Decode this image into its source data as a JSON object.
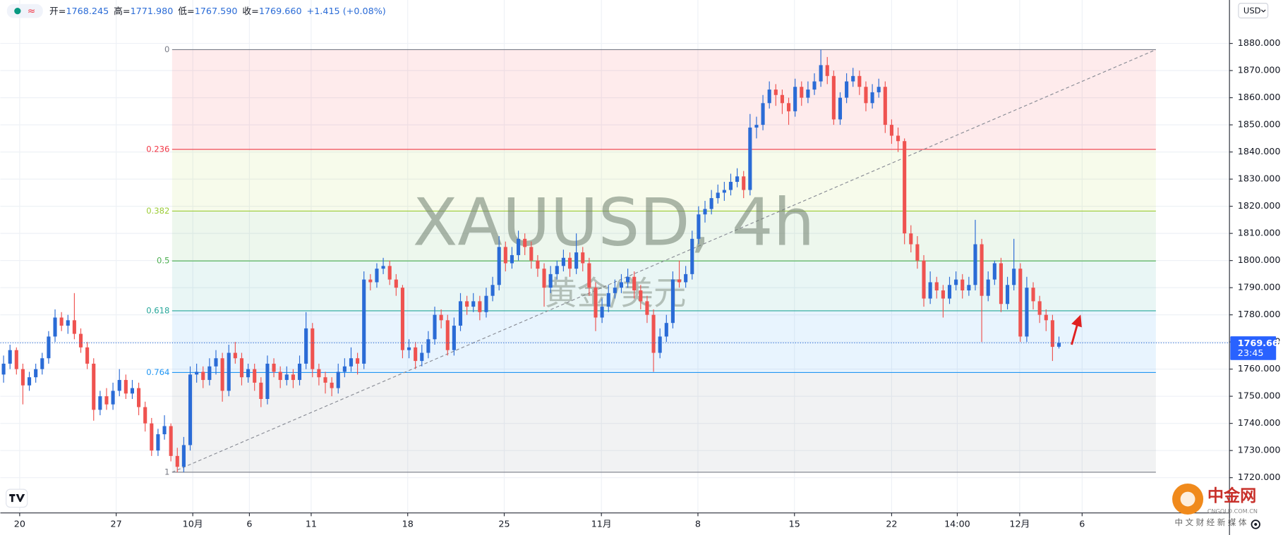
{
  "header": {
    "icon": "≈",
    "items": [
      {
        "label": "开=",
        "value": "1768.245"
      },
      {
        "label": "高=",
        "value": "1771.980"
      },
      {
        "label": "低=",
        "value": "1767.590"
      },
      {
        "label": "收=",
        "value": "1769.660"
      }
    ],
    "change": "+1.415 (+0.08%)"
  },
  "logo": {
    "name": "中金网",
    "domain": "CNGOLD.COM.CN",
    "slogan": "中文财经新媒体"
  },
  "chart_data": {
    "type": "candlestick",
    "currency": "USD",
    "watermark": {
      "title": "XAUUSD, 4h",
      "subtitle": "黄金/美元"
    },
    "up_color": "#2a6bd6",
    "down_color": "#ef5350",
    "grid": true,
    "ylim": [
      1707,
      1896
    ],
    "yticks": [
      {
        "value": 1720,
        "label": "1720.000"
      },
      {
        "value": 1730,
        "label": "1730.000"
      },
      {
        "value": 1740,
        "label": "1740.000"
      },
      {
        "value": 1750,
        "label": "1750.000"
      },
      {
        "value": 1760,
        "label": "1760.000"
      },
      {
        "value": 1770,
        "label": "1770.000"
      },
      {
        "value": 1780,
        "label": "1780.000"
      },
      {
        "value": 1790,
        "label": "1790.000"
      },
      {
        "value": 1800,
        "label": "1800.000"
      },
      {
        "value": 1810,
        "label": "1810.000"
      },
      {
        "value": 1820,
        "label": "1820.000"
      },
      {
        "value": 1830,
        "label": "1830.000"
      },
      {
        "value": 1840,
        "label": "1840.000"
      },
      {
        "value": 1850,
        "label": "1850.000"
      },
      {
        "value": 1860,
        "label": "1860.000"
      },
      {
        "value": 1870,
        "label": "1870.000"
      },
      {
        "value": 1880,
        "label": "1880.000"
      }
    ],
    "xlim": [
      -0.5,
      190.5
    ],
    "xticks": [
      {
        "value": 2.5,
        "label": "20"
      },
      {
        "value": 17.5,
        "label": "27"
      },
      {
        "value": 29.4,
        "label": "10月"
      },
      {
        "value": 38.2,
        "label": "6"
      },
      {
        "value": 47.8,
        "label": "11"
      },
      {
        "value": 62.8,
        "label": "18"
      },
      {
        "value": 77.8,
        "label": "25"
      },
      {
        "value": 92.9,
        "label": "11月"
      },
      {
        "value": 107.9,
        "label": "8"
      },
      {
        "value": 122.9,
        "label": "15"
      },
      {
        "value": 138,
        "label": "22"
      },
      {
        "value": 148.2,
        "label": "14:00"
      },
      {
        "value": 157.9,
        "label": "12月"
      },
      {
        "value": 167.6,
        "label": "6"
      }
    ],
    "last_price": {
      "value": 1769.66,
      "label": "1769.660",
      "countdown": "23:45"
    },
    "fib": {
      "high": 1877.7,
      "low": 1722,
      "levels": [
        0,
        0.236,
        0.382,
        0.5,
        0.618,
        0.764,
        1
      ],
      "colors": [
        "#787b86",
        "#f23645",
        "#9ccc36",
        "#4caf50",
        "#26a69a",
        "#2196f3",
        "#787b86"
      ],
      "fills": [
        "rgba(242,54,69,0.1)",
        "rgba(180,215,60,0.1)",
        "rgba(76,175,80,0.1)",
        "rgba(38,166,154,0.1)",
        "rgba(33,150,243,0.1)",
        "rgba(120,123,134,0.1)"
      ]
    },
    "ohlc": [
      [
        1758,
        1765,
        1755,
        1762
      ],
      [
        1762,
        1769,
        1760,
        1767
      ],
      [
        1767,
        1768,
        1758,
        1760
      ],
      [
        1760,
        1762,
        1747,
        1754
      ],
      [
        1754,
        1759,
        1752,
        1757
      ],
      [
        1757,
        1762,
        1755,
        1760
      ],
      [
        1760,
        1766,
        1758,
        1764
      ],
      [
        1764,
        1774,
        1762,
        1772
      ],
      [
        1772,
        1782,
        1770,
        1779
      ],
      [
        1779,
        1781,
        1774,
        1776
      ],
      [
        1776,
        1780,
        1773,
        1778
      ],
      [
        1778,
        1788,
        1771,
        1773
      ],
      [
        1773,
        1775,
        1766,
        1768
      ],
      [
        1768,
        1770,
        1760,
        1762
      ],
      [
        1762,
        1764,
        1741,
        1745
      ],
      [
        1745,
        1752,
        1743,
        1750
      ],
      [
        1750,
        1753,
        1745,
        1747
      ],
      [
        1747,
        1755,
        1745,
        1752
      ],
      [
        1752,
        1760,
        1750,
        1756
      ],
      [
        1756,
        1758,
        1749,
        1751
      ],
      [
        1751,
        1756,
        1749,
        1753
      ],
      [
        1753,
        1755,
        1743,
        1746
      ],
      [
        1746,
        1748,
        1737,
        1740
      ],
      [
        1740,
        1742,
        1728,
        1730
      ],
      [
        1730,
        1738,
        1728,
        1736
      ],
      [
        1736,
        1743,
        1734,
        1739
      ],
      [
        1739,
        1740,
        1726,
        1728
      ],
      [
        1728,
        1731,
        1722,
        1724
      ],
      [
        1724,
        1735,
        1722,
        1732
      ],
      [
        1732,
        1761,
        1730,
        1758
      ],
      [
        1758,
        1762,
        1755,
        1759
      ],
      [
        1759,
        1761,
        1753,
        1756
      ],
      [
        1756,
        1764,
        1754,
        1761
      ],
      [
        1761,
        1767,
        1758,
        1764
      ],
      [
        1764,
        1766,
        1748,
        1752
      ],
      [
        1752,
        1769,
        1750,
        1766
      ],
      [
        1766,
        1770,
        1762,
        1764
      ],
      [
        1764,
        1766,
        1754,
        1757
      ],
      [
        1757,
        1762,
        1755,
        1760
      ],
      [
        1760,
        1762,
        1752,
        1755
      ],
      [
        1755,
        1757,
        1746,
        1749
      ],
      [
        1749,
        1765,
        1747,
        1762
      ],
      [
        1762,
        1764,
        1757,
        1759
      ],
      [
        1759,
        1761,
        1753,
        1756
      ],
      [
        1756,
        1761,
        1754,
        1758
      ],
      [
        1758,
        1760,
        1753,
        1756
      ],
      [
        1756,
        1765,
        1754,
        1762
      ],
      [
        1762,
        1781,
        1760,
        1775
      ],
      [
        1775,
        1777,
        1757,
        1760
      ],
      [
        1760,
        1762,
        1754,
        1757
      ],
      [
        1757,
        1759,
        1751,
        1755
      ],
      [
        1755,
        1757,
        1750,
        1753
      ],
      [
        1753,
        1762,
        1751,
        1759
      ],
      [
        1759,
        1764,
        1757,
        1761
      ],
      [
        1761,
        1768,
        1759,
        1764
      ],
      [
        1764,
        1766,
        1758,
        1762
      ],
      [
        1762,
        1796,
        1760,
        1793
      ],
      [
        1793,
        1795,
        1789,
        1792
      ],
      [
        1792,
        1799,
        1790,
        1797
      ],
      [
        1797,
        1801,
        1795,
        1798
      ],
      [
        1798,
        1800,
        1791,
        1793
      ],
      [
        1793,
        1795,
        1787,
        1790
      ],
      [
        1790,
        1791,
        1764,
        1767
      ],
      [
        1767,
        1771,
        1764,
        1768
      ],
      [
        1768,
        1770,
        1760,
        1763
      ],
      [
        1763,
        1769,
        1761,
        1766
      ],
      [
        1766,
        1774,
        1764,
        1771
      ],
      [
        1771,
        1783,
        1769,
        1780
      ],
      [
        1780,
        1782,
        1775,
        1778
      ],
      [
        1778,
        1780,
        1765,
        1767
      ],
      [
        1767,
        1779,
        1765,
        1776
      ],
      [
        1776,
        1788,
        1774,
        1785
      ],
      [
        1785,
        1787,
        1780,
        1783
      ],
      [
        1783,
        1788,
        1781,
        1785
      ],
      [
        1785,
        1787,
        1778,
        1781
      ],
      [
        1781,
        1790,
        1779,
        1787
      ],
      [
        1787,
        1794,
        1785,
        1791
      ],
      [
        1791,
        1809,
        1789,
        1805
      ],
      [
        1805,
        1807,
        1796,
        1799
      ],
      [
        1799,
        1805,
        1797,
        1802
      ],
      [
        1802,
        1811,
        1800,
        1808
      ],
      [
        1808,
        1810,
        1802,
        1805
      ],
      [
        1805,
        1807,
        1797,
        1800
      ],
      [
        1800,
        1802,
        1794,
        1797
      ],
      [
        1797,
        1799,
        1783,
        1790
      ],
      [
        1790,
        1798,
        1788,
        1795
      ],
      [
        1795,
        1800,
        1793,
        1798
      ],
      [
        1798,
        1804,
        1796,
        1801
      ],
      [
        1801,
        1803,
        1794,
        1797
      ],
      [
        1797,
        1810,
        1795,
        1803
      ],
      [
        1803,
        1805,
        1796,
        1799
      ],
      [
        1799,
        1801,
        1787,
        1790
      ],
      [
        1790,
        1792,
        1774,
        1779
      ],
      [
        1779,
        1786,
        1777,
        1783
      ],
      [
        1783,
        1791,
        1781,
        1788
      ],
      [
        1788,
        1793,
        1786,
        1790
      ],
      [
        1790,
        1795,
        1788,
        1792
      ],
      [
        1792,
        1797,
        1790,
        1794
      ],
      [
        1794,
        1796,
        1786,
        1789
      ],
      [
        1789,
        1791,
        1782,
        1785
      ],
      [
        1785,
        1787,
        1777,
        1780
      ],
      [
        1780,
        1782,
        1759,
        1766
      ],
      [
        1766,
        1775,
        1764,
        1772
      ],
      [
        1772,
        1780,
        1770,
        1777
      ],
      [
        1777,
        1796,
        1775,
        1793
      ],
      [
        1793,
        1800,
        1790,
        1792
      ],
      [
        1792,
        1798,
        1790,
        1795
      ],
      [
        1795,
        1811,
        1793,
        1808
      ],
      [
        1808,
        1820,
        1806,
        1817
      ],
      [
        1817,
        1822,
        1814,
        1819
      ],
      [
        1819,
        1826,
        1817,
        1823
      ],
      [
        1823,
        1828,
        1821,
        1825
      ],
      [
        1825,
        1829,
        1822,
        1826
      ],
      [
        1826,
        1832,
        1824,
        1829
      ],
      [
        1829,
        1834,
        1827,
        1831
      ],
      [
        1831,
        1833,
        1823,
        1826
      ],
      [
        1826,
        1854,
        1824,
        1849
      ],
      [
        1849,
        1853,
        1845,
        1850
      ],
      [
        1850,
        1861,
        1848,
        1858
      ],
      [
        1858,
        1866,
        1856,
        1863
      ],
      [
        1863,
        1865,
        1857,
        1861
      ],
      [
        1861,
        1863,
        1854,
        1858
      ],
      [
        1858,
        1860,
        1850,
        1855
      ],
      [
        1855,
        1867,
        1853,
        1864
      ],
      [
        1864,
        1866,
        1857,
        1860
      ],
      [
        1860,
        1866,
        1858,
        1863
      ],
      [
        1863,
        1869,
        1861,
        1866
      ],
      [
        1866,
        1877.7,
        1864,
        1872
      ],
      [
        1872,
        1875,
        1865,
        1868
      ],
      [
        1868,
        1870,
        1850,
        1852
      ],
      [
        1852,
        1862,
        1850,
        1860
      ],
      [
        1860,
        1869,
        1858,
        1866
      ],
      [
        1866,
        1871,
        1864,
        1868
      ],
      [
        1868,
        1870,
        1861,
        1864
      ],
      [
        1864,
        1866,
        1855,
        1858
      ],
      [
        1858,
        1865,
        1856,
        1862
      ],
      [
        1862,
        1867,
        1860,
        1864
      ],
      [
        1864,
        1866,
        1847,
        1850
      ],
      [
        1850,
        1852,
        1843,
        1846
      ],
      [
        1846,
        1849,
        1840,
        1844
      ],
      [
        1844,
        1845,
        1806,
        1810
      ],
      [
        1810,
        1813,
        1803,
        1806
      ],
      [
        1806,
        1809,
        1797,
        1800
      ],
      [
        1800,
        1802,
        1783,
        1786
      ],
      [
        1786,
        1796,
        1784,
        1792
      ],
      [
        1792,
        1794,
        1786,
        1789
      ],
      [
        1789,
        1791,
        1779,
        1786
      ],
      [
        1786,
        1794,
        1784,
        1791
      ],
      [
        1791,
        1796,
        1789,
        1793
      ],
      [
        1793,
        1795,
        1786,
        1789
      ],
      [
        1789,
        1794,
        1787,
        1791
      ],
      [
        1791,
        1815,
        1789,
        1806
      ],
      [
        1806,
        1808,
        1770,
        1787
      ],
      [
        1787,
        1796,
        1785,
        1793
      ],
      [
        1793,
        1800,
        1791,
        1799
      ],
      [
        1799,
        1801,
        1781,
        1784
      ],
      [
        1784,
        1794,
        1782,
        1791
      ],
      [
        1791,
        1808,
        1789,
        1797
      ],
      [
        1797,
        1799,
        1770,
        1772
      ],
      [
        1772,
        1794,
        1770,
        1790
      ],
      [
        1790,
        1792,
        1782,
        1785
      ],
      [
        1785,
        1787,
        1777,
        1780
      ],
      [
        1780,
        1782,
        1774,
        1778
      ],
      [
        1778,
        1780,
        1763,
        1768.2
      ],
      [
        1768.245,
        1771.98,
        1767.59,
        1769.66
      ]
    ]
  }
}
